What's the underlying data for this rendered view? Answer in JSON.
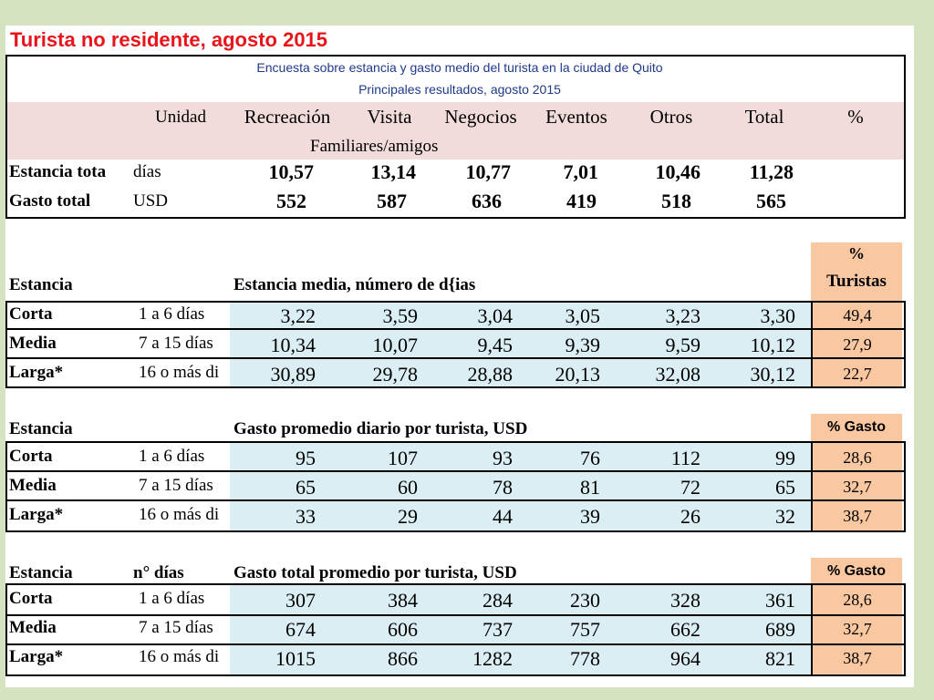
{
  "title": "Turista no residente, agosto 2015",
  "subtitle1": "Encuesta sobre estancia y gasto medio del turista en la ciudad de Quito",
  "subtitle2": "Principales resultados, agosto 2015",
  "columns": {
    "unidad": "Unidad",
    "recreacion": "Recreación",
    "visita": "Visita",
    "visita_sub": "Familiares/amigos",
    "negocios": "Negocios",
    "eventos": "Eventos",
    "otros": "Otros",
    "total": "Total",
    "pct": "%"
  },
  "summary": [
    {
      "label": "Estancia tota",
      "unit": "días",
      "values": [
        "10,57",
        "13,14",
        "10,77",
        "7,01",
        "10,46",
        "11,28"
      ]
    },
    {
      "label": "Gasto total",
      "unit": "USD",
      "values": [
        "552",
        "587",
        "636",
        "419",
        "518",
        "565"
      ]
    }
  ],
  "sec1": {
    "left_header": "Estancia",
    "title": "Estancia media, número de d{ias",
    "pct_header_1": "%",
    "pct_header_2": "Turistas",
    "rows": [
      {
        "label": "Corta",
        "range": "1 a 6 días",
        "values": [
          "3,22",
          "3,59",
          "3,04",
          "3,05",
          "3,23",
          "3,30"
        ],
        "pct": "49,4"
      },
      {
        "label": "Media",
        "range": "7 a 15 días",
        "values": [
          "10,34",
          "10,07",
          "9,45",
          "9,39",
          "9,59",
          "10,12"
        ],
        "pct": "27,9"
      },
      {
        "label": "Larga*",
        "range": "16 o más di",
        "values": [
          "30,89",
          "29,78",
          "28,88",
          "20,13",
          "32,08",
          "30,12"
        ],
        "pct": "22,7"
      }
    ]
  },
  "sec2": {
    "left_header": "Estancia",
    "title": "Gasto promedio diario por turista, USD",
    "pct_header": "% Gasto",
    "rows": [
      {
        "label": "Corta",
        "range": "1 a 6 días",
        "values": [
          "95",
          "107",
          "93",
          "76",
          "112",
          "99"
        ],
        "pct": "28,6"
      },
      {
        "label": "Media",
        "range": "7 a 15 días",
        "values": [
          "65",
          "60",
          "78",
          "81",
          "72",
          "65"
        ],
        "pct": "32,7"
      },
      {
        "label": "Larga*",
        "range": "16 o más di",
        "values": [
          "33",
          "29",
          "44",
          "39",
          "26",
          "32"
        ],
        "pct": "38,7"
      }
    ]
  },
  "sec3": {
    "left_header": "Estancia",
    "dias_header": "n° días",
    "title": "Gasto total promedio por turista, USD",
    "pct_header": "% Gasto",
    "rows": [
      {
        "label": "Corta",
        "range": "1 a 6 días",
        "values": [
          "307",
          "384",
          "284",
          "230",
          "328",
          "361"
        ],
        "pct": "28,6"
      },
      {
        "label": "Media",
        "range": "7 a 15 días",
        "values": [
          "674",
          "606",
          "737",
          "757",
          "662",
          "689"
        ],
        "pct": "32,7"
      },
      {
        "label": "Larga*",
        "range": "16 o más di",
        "values": [
          "1015",
          "866",
          "1282",
          "778",
          "964",
          "821"
        ],
        "pct": "38,7"
      }
    ]
  },
  "colors": {
    "pink": "#f1dcdb",
    "blue": "#dbeef3",
    "orange": "#f9c7a0",
    "title_red": "#e8141c",
    "subtitle_blue": "#1f3a8a",
    "background": "#d5e3c1"
  }
}
